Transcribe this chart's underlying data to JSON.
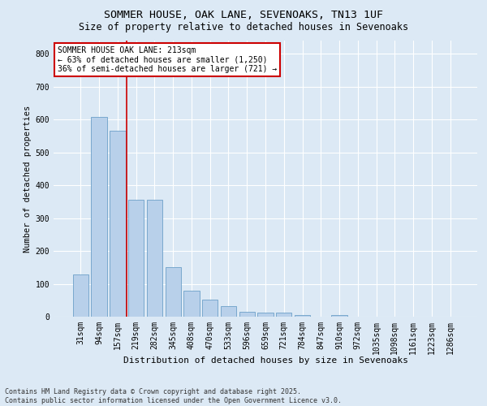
{
  "title1": "SOMMER HOUSE, OAK LANE, SEVENOAKS, TN13 1UF",
  "title2": "Size of property relative to detached houses in Sevenoaks",
  "xlabel": "Distribution of detached houses by size in Sevenoaks",
  "ylabel": "Number of detached properties",
  "categories": [
    "31sqm",
    "94sqm",
    "157sqm",
    "219sqm",
    "282sqm",
    "345sqm",
    "408sqm",
    "470sqm",
    "533sqm",
    "596sqm",
    "659sqm",
    "721sqm",
    "784sqm",
    "847sqm",
    "910sqm",
    "972sqm",
    "1035sqm",
    "1098sqm",
    "1161sqm",
    "1223sqm",
    "1286sqm"
  ],
  "values": [
    128,
    607,
    565,
    355,
    355,
    150,
    80,
    52,
    33,
    15,
    13,
    13,
    5,
    0,
    5,
    0,
    0,
    0,
    0,
    0,
    0
  ],
  "bar_color": "#b8d0ea",
  "bar_edge_color": "#6ca0c8",
  "vline_color": "#cc0000",
  "vline_position": 2.5,
  "annotation_text": "SOMMER HOUSE OAK LANE: 213sqm\n← 63% of detached houses are smaller (1,250)\n36% of semi-detached houses are larger (721) →",
  "annotation_box_facecolor": "#ffffff",
  "annotation_box_edgecolor": "#cc0000",
  "ylim": [
    0,
    840
  ],
  "yticks": [
    0,
    100,
    200,
    300,
    400,
    500,
    600,
    700,
    800
  ],
  "bg_color": "#dce9f5",
  "footer": "Contains HM Land Registry data © Crown copyright and database right 2025.\nContains public sector information licensed under the Open Government Licence v3.0.",
  "title1_fontsize": 9.5,
  "title2_fontsize": 8.5,
  "xlabel_fontsize": 8,
  "ylabel_fontsize": 7.5,
  "tick_fontsize": 7,
  "annotation_fontsize": 7,
  "footer_fontsize": 6
}
